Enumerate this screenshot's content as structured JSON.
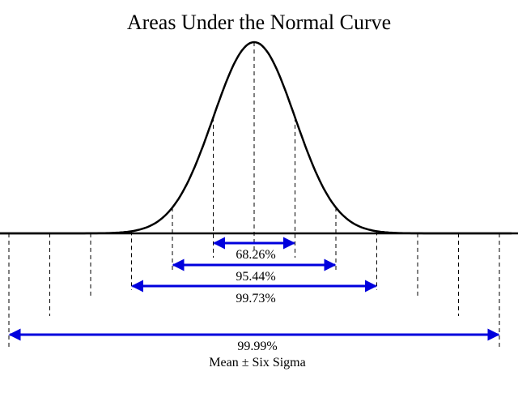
{
  "title": "Areas Under the Normal Curve",
  "colors": {
    "curve": "#000000",
    "arrow": "#0000dd",
    "guide": "#000000"
  },
  "intervals": [
    {
      "label": "68.26%",
      "sigma": 1
    },
    {
      "label": "95.44%",
      "sigma": 2
    },
    {
      "label": "99.73%",
      "sigma": 3
    },
    {
      "label": "99.99%",
      "sigma": 6
    }
  ],
  "subtitle": "Mean ± Six Sigma"
}
